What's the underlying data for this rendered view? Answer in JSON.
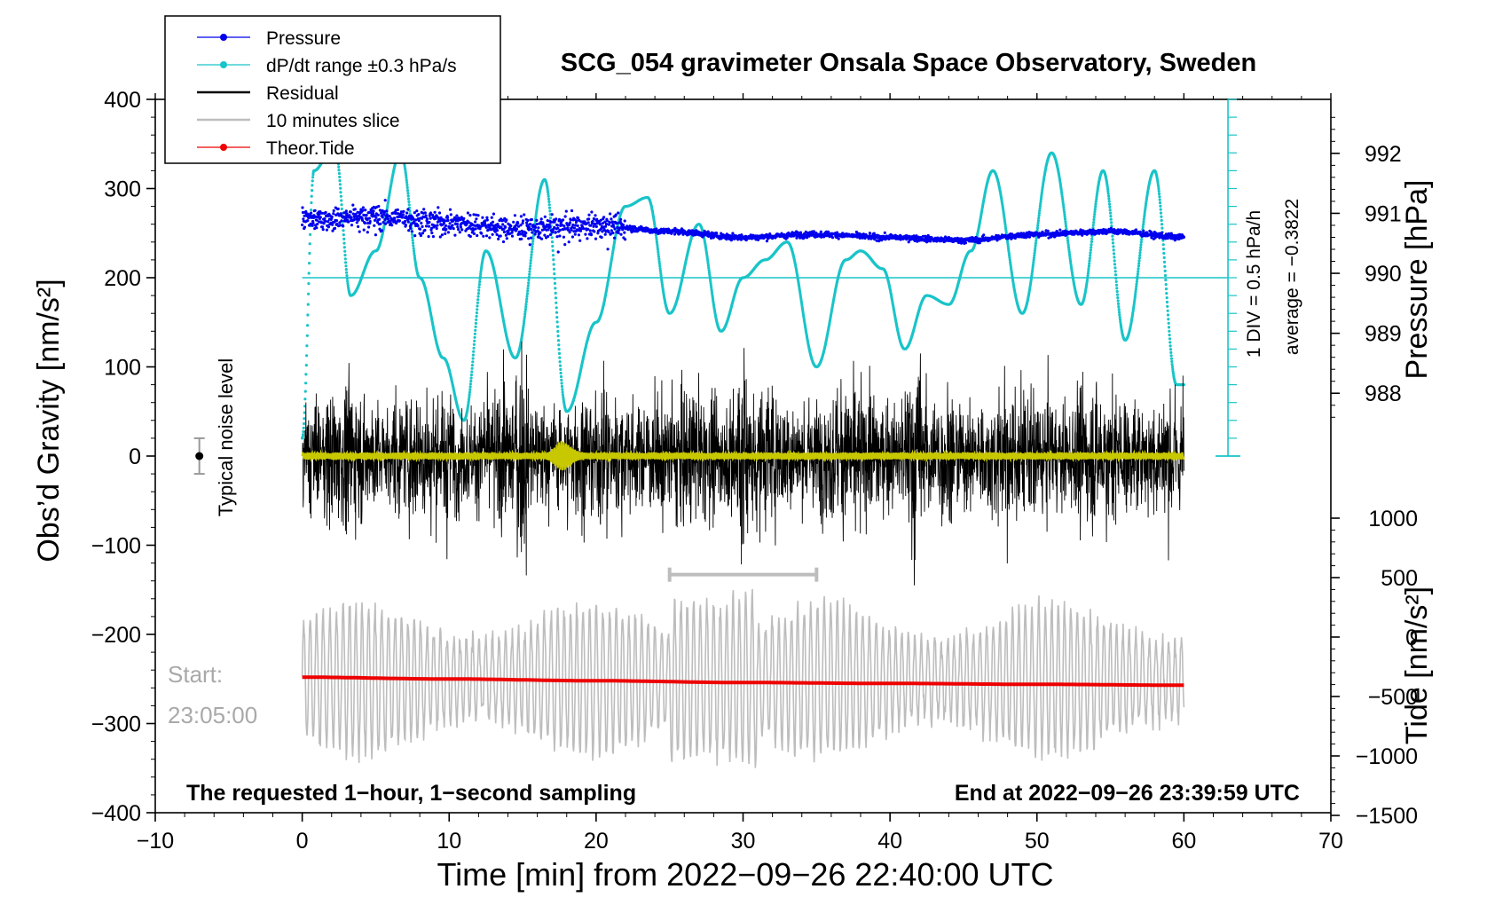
{
  "chart_data": {
    "type": "line",
    "title": "SCG_054 gravimeter Onsala Space Observatory, Sweden",
    "xlabel": "Time [min] from 2022−09−26 22:40:00 UTC",
    "ylabel_left": "Obs’d Gravity [nm/s²]",
    "ylabel_right_top": "Pressure [hPa]",
    "ylabel_right_bottom": "Tide [nm/s²]",
    "xlim": [
      -10,
      70
    ],
    "ylim": [
      -400,
      400
    ],
    "pressure_range": [
      987,
      993
    ],
    "tide_range": [
      -1500,
      1500
    ],
    "x_ticks": [
      "−10",
      "0",
      "10",
      "20",
      "30",
      "40",
      "50",
      "60",
      "70"
    ],
    "y_ticks_left": [
      "400",
      "300",
      "200",
      "100",
      "0",
      "−100",
      "−200",
      "−300",
      "−400"
    ],
    "pressure_ticks": [
      "992",
      "991",
      "990",
      "989",
      "988"
    ],
    "tide_ticks": [
      "1000",
      "500",
      "0",
      "−500",
      "−1000",
      "−1500"
    ],
    "legend": {
      "position": "top-left",
      "entries": [
        {
          "label": "Pressure",
          "color": "#0000ee"
        },
        {
          "label": "dP/dt range ±0.3 hPa/s",
          "color": "#18c4c8"
        },
        {
          "label": "Residual",
          "color": "#000000"
        },
        {
          "label": "10 minutes slice",
          "color": "#bdbdbd"
        },
        {
          "label": "Theor.Tide",
          "color": "#ee0000"
        }
      ]
    },
    "series": [
      {
        "name": "Pressure",
        "unit": "hPa",
        "x": [
          0,
          5,
          10,
          15,
          20,
          25,
          30,
          35,
          40,
          45,
          50,
          55,
          60
        ],
        "values": [
          990.9,
          990.95,
          990.85,
          990.75,
          990.8,
          990.7,
          990.6,
          990.65,
          990.6,
          990.55,
          990.65,
          990.7,
          990.6
        ]
      },
      {
        "name": "dP/dt range",
        "unit": "nm/s² (plot units)",
        "x": [
          0,
          0.8,
          2.2,
          3.3,
          5,
          6.7,
          8,
          9.6,
          11,
          12.5,
          14.5,
          16.5,
          18,
          20,
          22,
          23.5,
          25,
          27,
          28.5,
          30,
          31.5,
          33,
          35,
          37,
          38,
          39.5,
          41,
          42.5,
          44,
          45.5,
          47,
          49,
          51,
          53,
          54.5,
          56,
          58,
          59.5
        ],
        "values": [
          20,
          320,
          350,
          180,
          230,
          340,
          200,
          110,
          40,
          230,
          110,
          310,
          50,
          150,
          280,
          290,
          160,
          260,
          140,
          200,
          220,
          240,
          100,
          220,
          230,
          210,
          120,
          180,
          170,
          230,
          320,
          160,
          340,
          170,
          320,
          130,
          320,
          80
        ]
      },
      {
        "name": "Residual",
        "unit": "nm/s²",
        "x": [
          0,
          60
        ],
        "values": [
          0,
          0
        ],
        "noise_amplitude": 80
      },
      {
        "name": "10 minutes slice",
        "unit": "nm/s²",
        "x": [
          0,
          60
        ],
        "values": [
          -250,
          -250
        ],
        "slice_minutes": [
          25,
          35
        ]
      },
      {
        "name": "Theor.Tide",
        "unit": "nm/s²",
        "x": [
          0,
          10,
          20,
          30,
          40,
          50,
          60
        ],
        "values": [
          -248,
          -250,
          -252,
          -254,
          -255,
          -256,
          -257
        ]
      }
    ],
    "noise_label": "Typical noise level",
    "noise_point": {
      "x": -7,
      "y": 0,
      "err": 20
    },
    "dpdt_scale_label": "1 DIV = 0.5 hPa/h",
    "average_label": "average = −0.3822",
    "start_label": "Start:",
    "start_time": "23:05:00",
    "footer_left": "The requested 1−hour, 1−second sampling",
    "footer_right": "End at 2022−09−26 23:39:59 UTC"
  }
}
